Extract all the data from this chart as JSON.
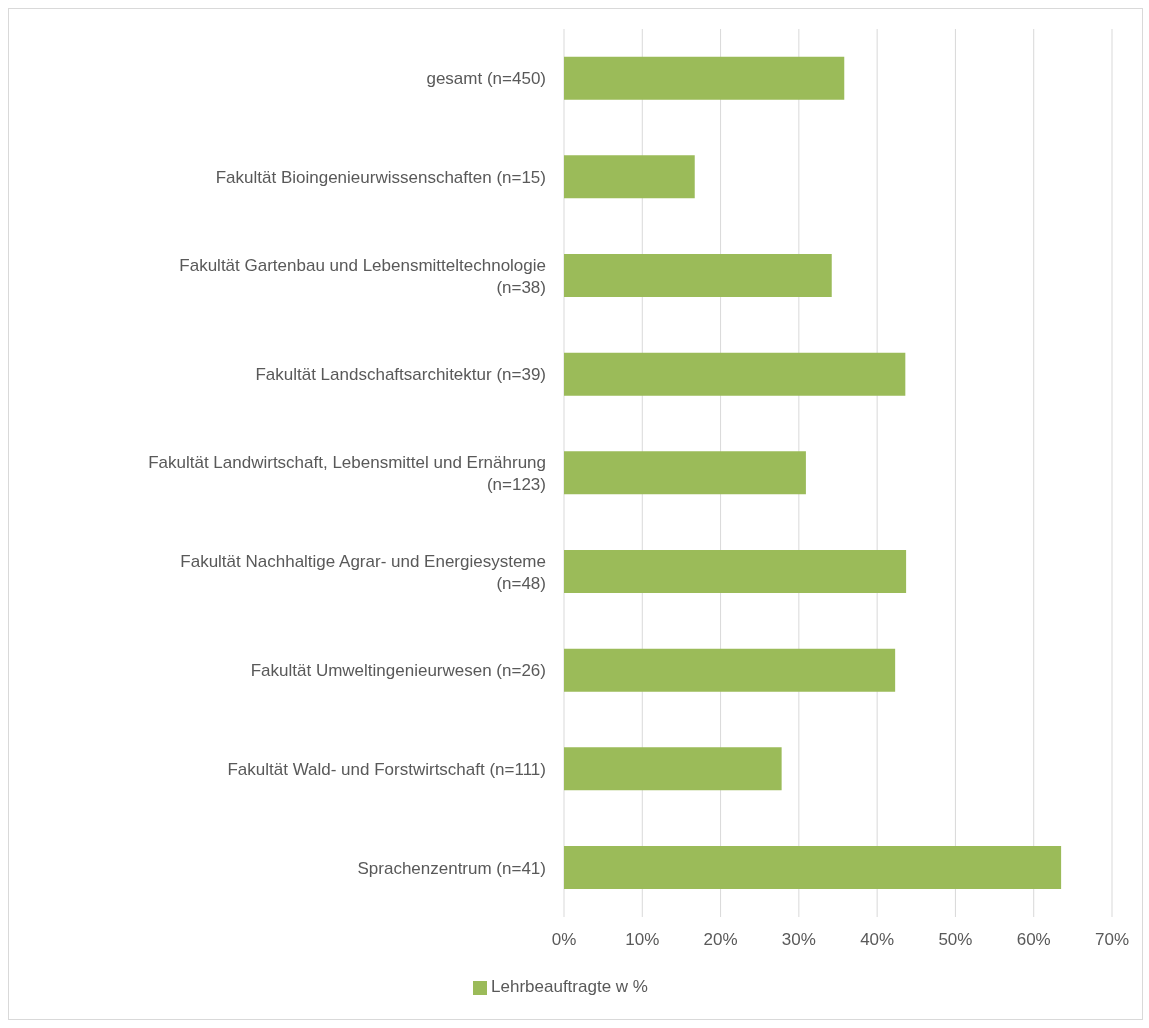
{
  "chart_data": {
    "type": "bar",
    "orientation": "horizontal",
    "categories": [
      "gesamt (n=450)",
      "Fakultät Bioingenieurwissenschaften (n=15)",
      "Fakultät Gartenbau und Lebensmitteltechnologie (n=38)",
      "Fakultät Landschaftsarchitektur (n=39)",
      "Fakultät Landwirtschaft, Lebensmittel und Ernährung (n=123)",
      "Fakultät Nachhaltige Agrar- und Energiesysteme (n=48)",
      "Fakultät Umweltingenieurwesen (n=26)",
      "Fakultät Wald- und Forstwirtschaft (n=111)",
      "Sprachenzentrum (n=41)"
    ],
    "series": [
      {
        "name": "Lehrbeauftragte w %",
        "color": "#9bbb59",
        "values": [
          35.8,
          16.7,
          34.2,
          43.6,
          30.9,
          43.7,
          42.3,
          27.8,
          63.5
        ]
      }
    ],
    "xlim": [
      0,
      70
    ],
    "xticks": [
      {
        "value": 0,
        "label": "0%"
      },
      {
        "value": 10,
        "label": "10%"
      },
      {
        "value": 20,
        "label": "20%"
      },
      {
        "value": 30,
        "label": "30%"
      },
      {
        "value": 40,
        "label": "40%"
      },
      {
        "value": 50,
        "label": "50%"
      },
      {
        "value": 60,
        "label": "60%"
      },
      {
        "value": 70,
        "label": "70%"
      }
    ],
    "grid": "x",
    "legend": "bottom"
  }
}
